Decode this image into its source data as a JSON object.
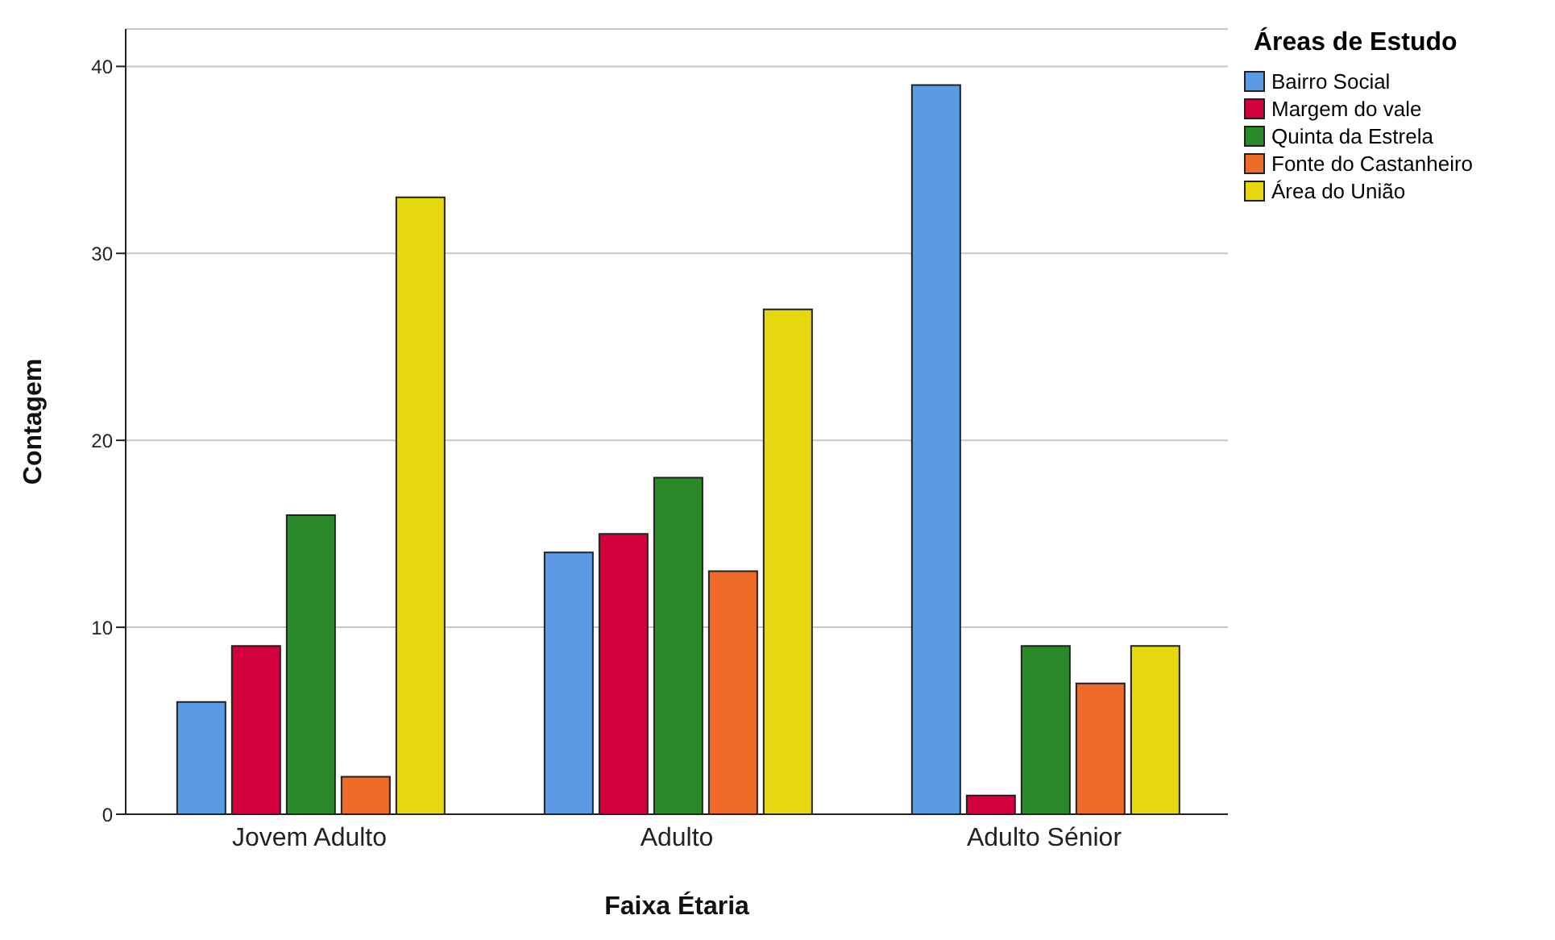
{
  "chart_data": {
    "type": "bar",
    "xlabel": "Faixa Étaria",
    "ylabel": "Contagem",
    "legend_title": "Áreas de Estudo",
    "categories": [
      "Jovem Adulto",
      "Adulto",
      "Adulto Sénior"
    ],
    "series": [
      {
        "name": "Bairro Social",
        "color": "#5b9be6",
        "values": [
          6,
          14,
          39
        ]
      },
      {
        "name": "Margem do vale",
        "color": "#d2003c",
        "values": [
          9,
          15,
          1
        ]
      },
      {
        "name": "Quinta da Estrela",
        "color": "#2a8a2a",
        "values": [
          16,
          18,
          9
        ]
      },
      {
        "name": "Fonte do Castanheiro",
        "color": "#f06a28",
        "values": [
          2,
          13,
          7
        ]
      },
      {
        "name": "Área do União",
        "color": "#e6d80e",
        "values": [
          33,
          27,
          9
        ]
      }
    ],
    "ylim": [
      0,
      42
    ],
    "yticks": [
      0,
      10,
      20,
      30,
      40
    ],
    "grid": "y",
    "legend": "top right"
  }
}
